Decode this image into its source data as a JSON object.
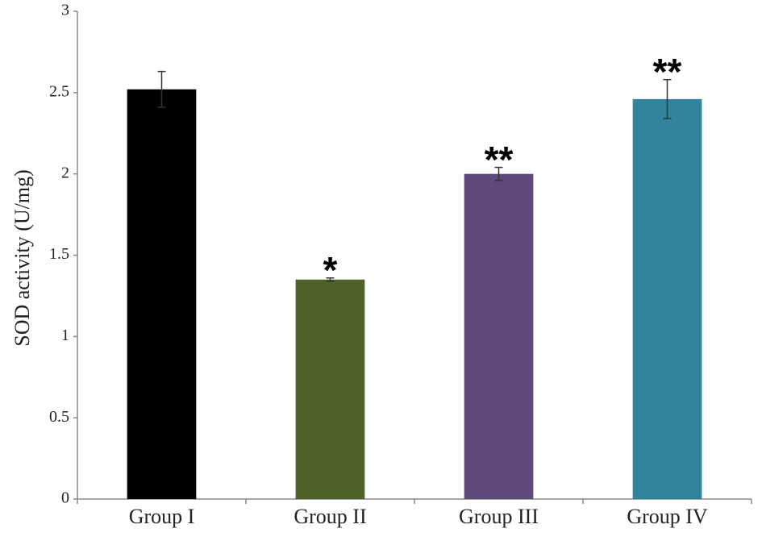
{
  "chart_data": {
    "type": "bar",
    "y_label": "SOD activity (U/mg)",
    "categories": [
      "Group I",
      "Group II",
      "Group III",
      "Group IV"
    ],
    "values": [
      2.52,
      1.35,
      2.0,
      2.46
    ],
    "errors": [
      0.11,
      0.01,
      0.04,
      0.12
    ],
    "annotations": [
      null,
      "*",
      "**",
      "**"
    ],
    "colors": [
      "#000000",
      "#4f6228",
      "#604a7b",
      "#31849b"
    ],
    "ylim": [
      0,
      3
    ],
    "yticks": [
      0,
      0.5,
      1,
      1.5,
      2,
      2.5,
      3
    ],
    "grid": false
  }
}
